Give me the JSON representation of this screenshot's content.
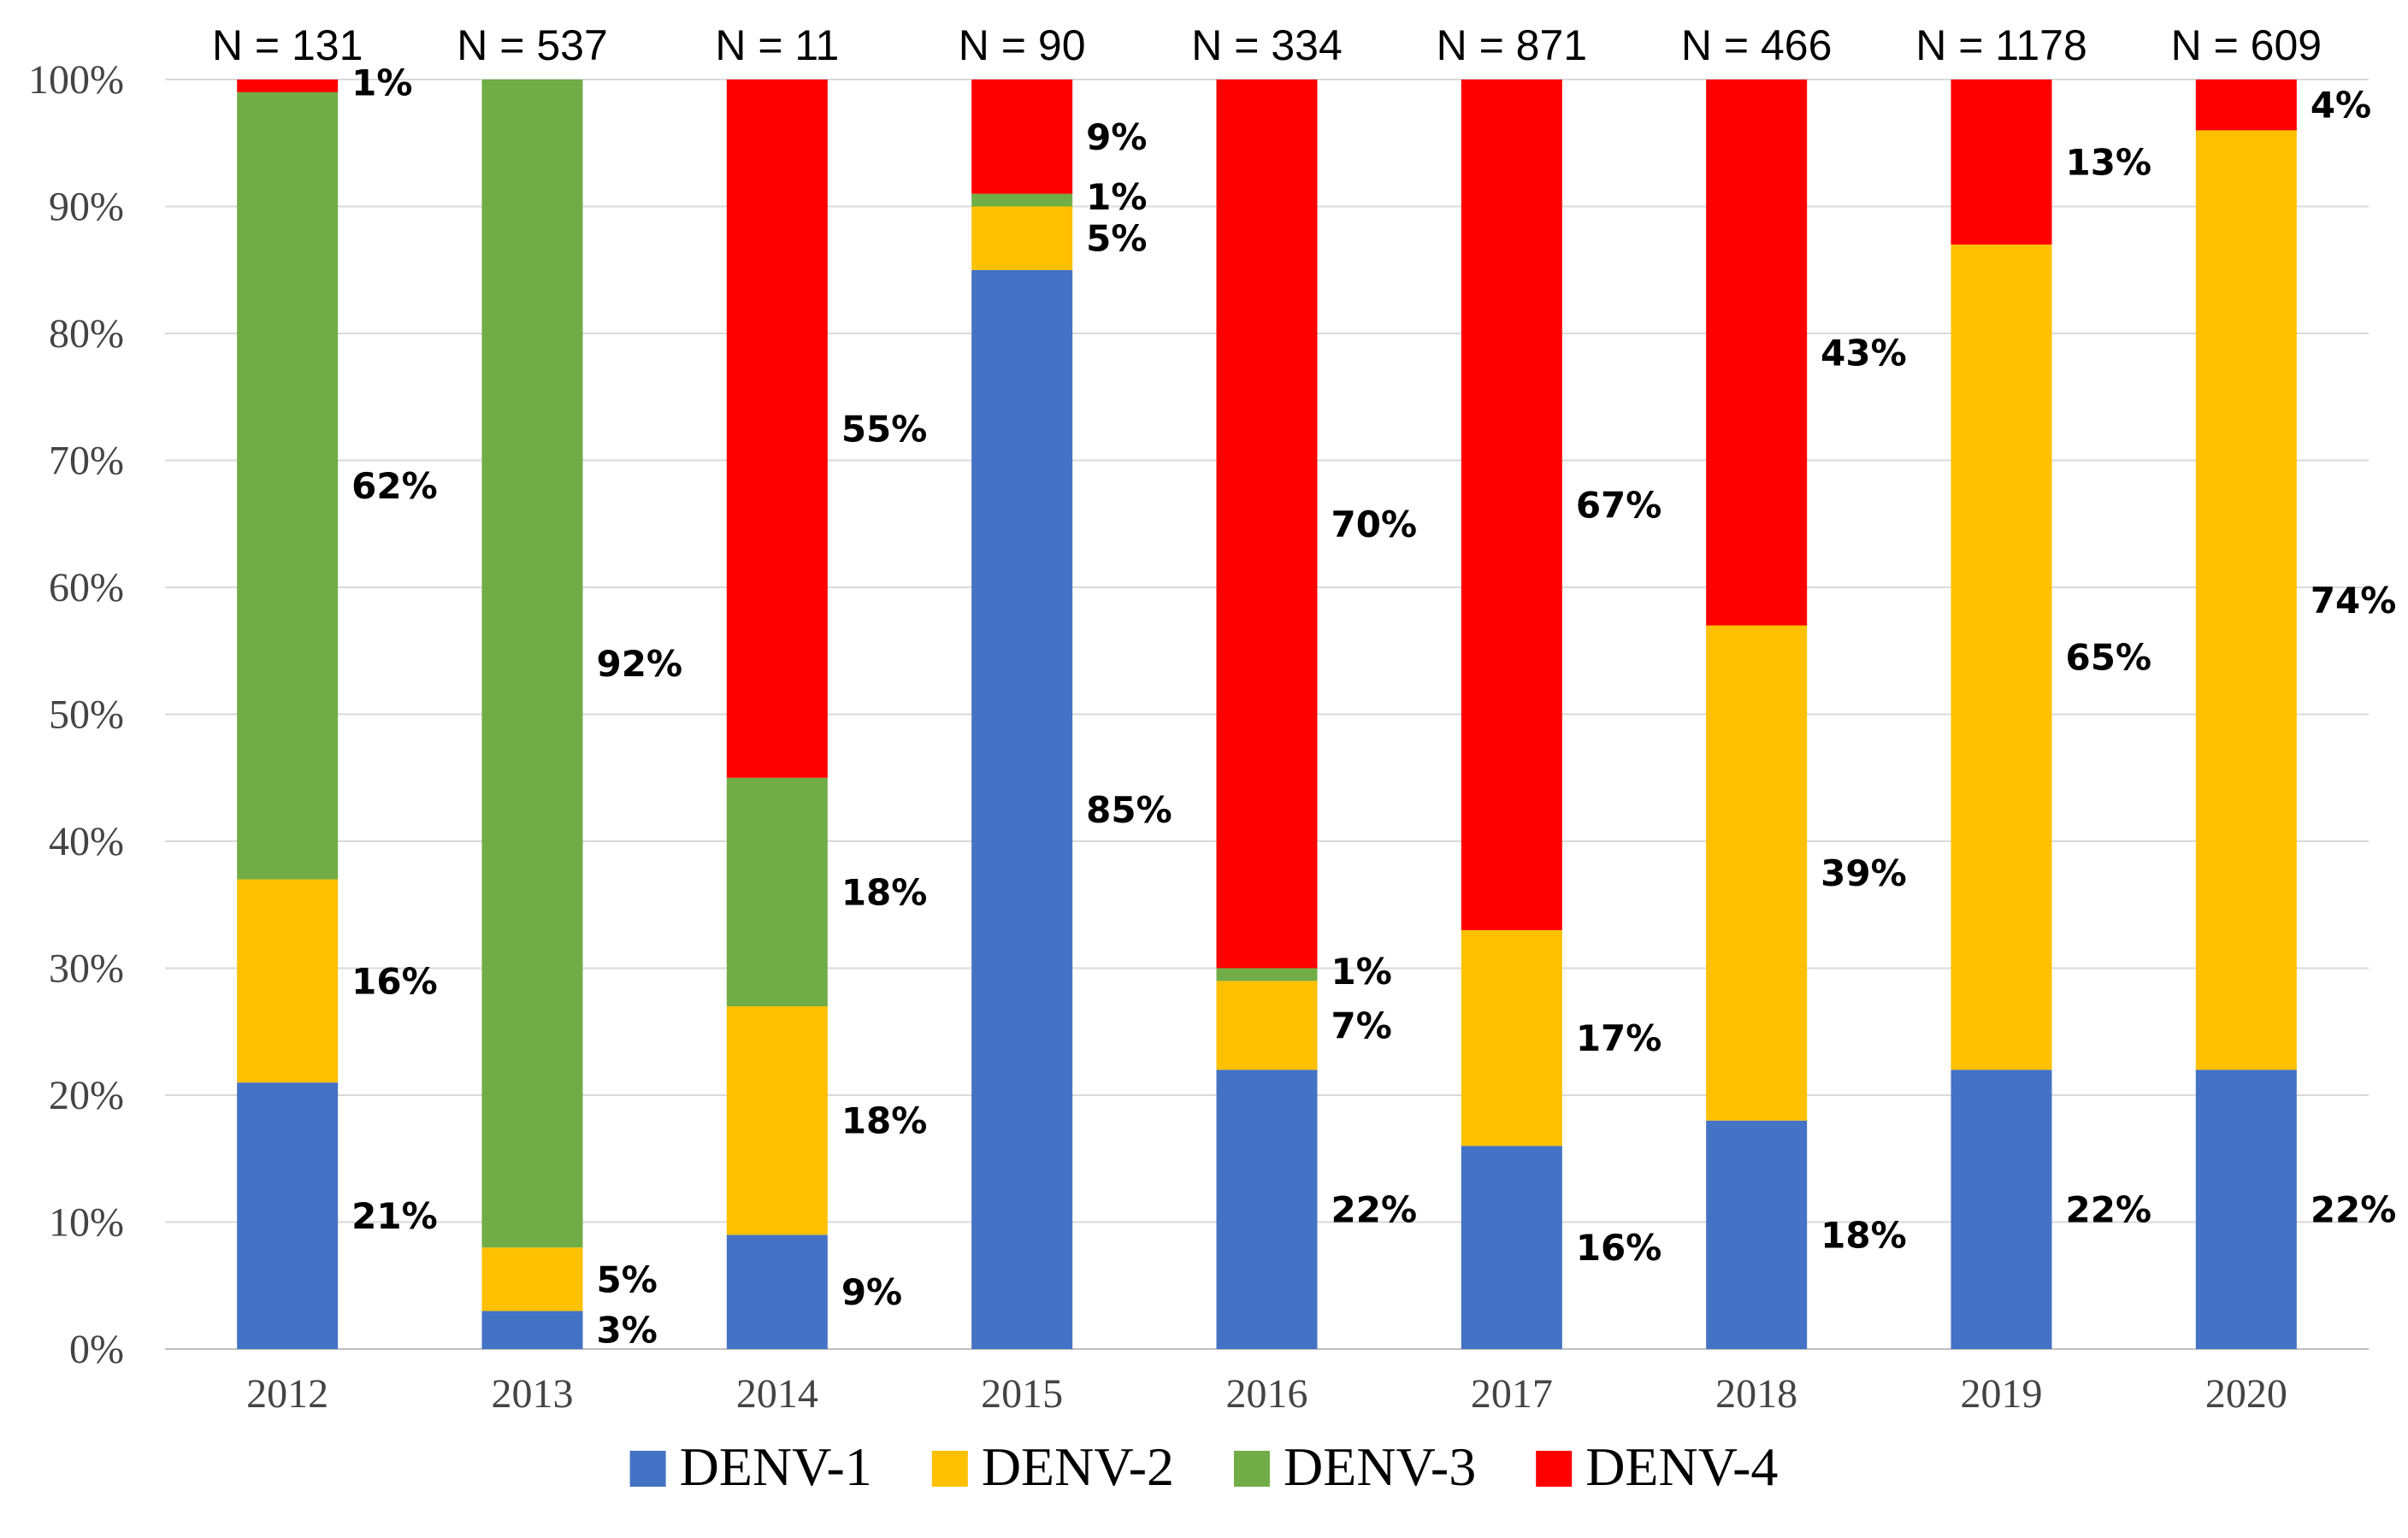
{
  "chart_data": {
    "type": "bar",
    "stacked": true,
    "percent": true,
    "categories": [
      "2012",
      "2013",
      "2014",
      "2015",
      "2016",
      "2017",
      "2018",
      "2019",
      "2020"
    ],
    "sample_sizes": [
      "N = 131",
      "N = 537",
      "N = 11",
      "N = 90",
      "N = 334",
      "N = 871",
      "N = 466",
      "N = 1178",
      "N = 609"
    ],
    "series": [
      {
        "name": "DENV-1",
        "color": "#4472C4",
        "values": [
          21,
          3,
          9,
          85,
          22,
          16,
          18,
          22,
          22
        ],
        "labels": [
          "21%",
          "3%",
          "9%",
          "85%",
          "22%",
          "16%",
          "18%",
          "22%",
          "22%"
        ]
      },
      {
        "name": "DENV-2",
        "color": "#FFC000",
        "values": [
          16,
          5,
          18,
          5,
          7,
          17,
          39,
          65,
          74
        ],
        "labels": [
          "16%",
          "5%",
          "18%",
          "5%",
          "7%",
          "17%",
          "39%",
          "65%",
          "74%"
        ]
      },
      {
        "name": "DENV-3",
        "color": "#70AD47",
        "values": [
          62,
          92,
          18,
          1,
          1,
          0,
          0,
          0,
          0
        ],
        "labels": [
          "62%",
          "92%",
          "18%",
          "1%",
          "1%",
          "",
          "",
          "",
          ""
        ]
      },
      {
        "name": "DENV-4",
        "color": "#FF0000",
        "values": [
          1,
          0,
          55,
          9,
          70,
          67,
          43,
          13,
          4
        ],
        "labels": [
          "1%",
          "",
          "55%",
          "9%",
          "70%",
          "67%",
          "43%",
          "13%",
          "4%"
        ]
      }
    ],
    "yticks": [
      "0%",
      "10%",
      "20%",
      "30%",
      "40%",
      "50%",
      "60%",
      "70%",
      "80%",
      "90%",
      "100%"
    ],
    "ylim": [
      0,
      100
    ],
    "grid": true,
    "legend_position": "bottom",
    "title": "",
    "xlabel": "",
    "ylabel": ""
  }
}
